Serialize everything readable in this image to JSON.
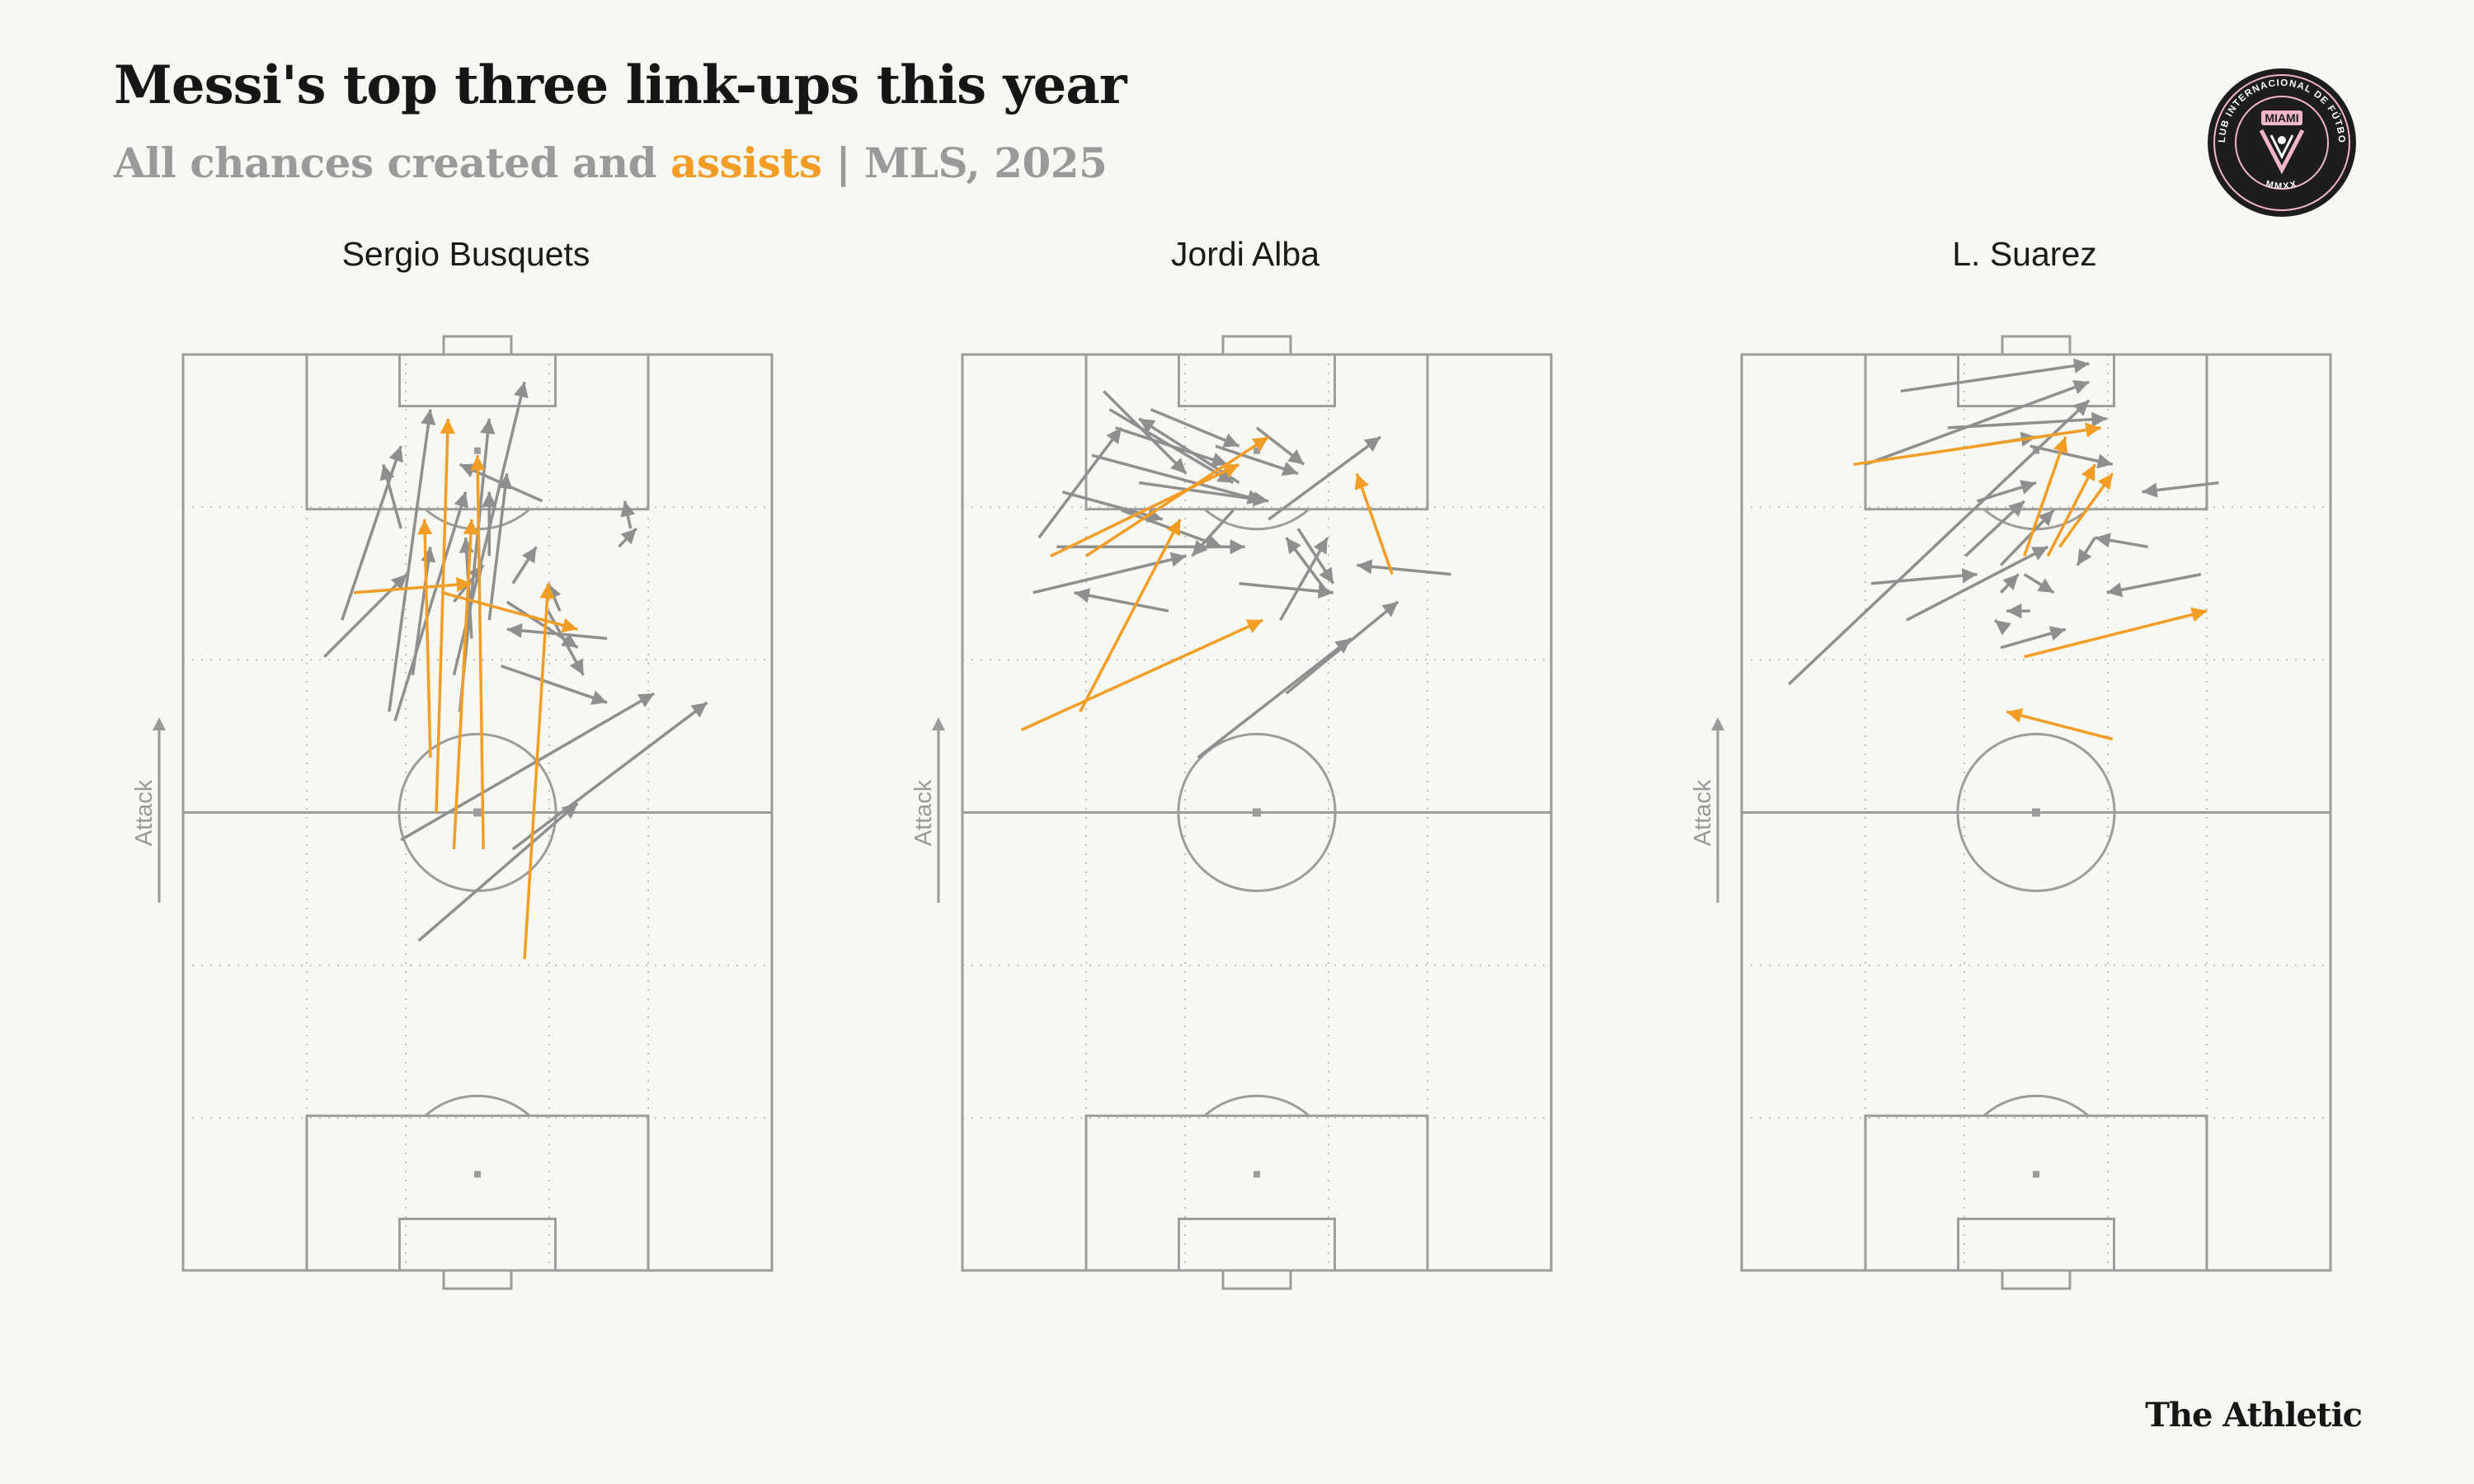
{
  "header": {
    "title": "Messi's top three link-ups this year",
    "subtitle_main": "All chances created and ",
    "subtitle_highlight": "assists",
    "subtitle_tail": " | MLS, 2025"
  },
  "logo": {
    "name": "Inter Miami crest",
    "text_top": "MIAMI",
    "text_ring": "CLUB INTERNACIONAL DE FÚTBOL",
    "text_bottom": "MMXX"
  },
  "brand": "The Athletic",
  "colors": {
    "assist": "#f29d26",
    "chance": "#8f8f8f",
    "pitch_line": "#9c9c9c",
    "background": "#f7f7f3"
  },
  "chart_data": [
    {
      "type": "pass-map",
      "title": "Sergio Busquets",
      "direction_label": "Attack",
      "x_range": [
        0,
        100
      ],
      "y_range": [
        0,
        100
      ],
      "passes": [
        {
          "x1": 43,
          "y1": 50,
          "x2": 45,
          "y2": 93,
          "assist": true
        },
        {
          "x1": 51,
          "y1": 46,
          "x2": 50,
          "y2": 89,
          "assist": true
        },
        {
          "x1": 46,
          "y1": 46,
          "x2": 49,
          "y2": 82,
          "assist": true
        },
        {
          "x1": 42,
          "y1": 56,
          "x2": 41,
          "y2": 82,
          "assist": true
        },
        {
          "x1": 29,
          "y1": 74,
          "x2": 49,
          "y2": 75,
          "assist": true
        },
        {
          "x1": 58,
          "y1": 34,
          "x2": 62,
          "y2": 75,
          "assist": true
        },
        {
          "x1": 44,
          "y1": 74,
          "x2": 67,
          "y2": 70,
          "assist": true
        },
        {
          "x1": 35,
          "y1": 61,
          "x2": 42,
          "y2": 94,
          "assist": false
        },
        {
          "x1": 47,
          "y1": 61,
          "x2": 52,
          "y2": 93,
          "assist": false
        },
        {
          "x1": 46,
          "y1": 65,
          "x2": 58,
          "y2": 97,
          "assist": false
        },
        {
          "x1": 27,
          "y1": 71,
          "x2": 37,
          "y2": 90,
          "assist": false
        },
        {
          "x1": 52,
          "y1": 71,
          "x2": 55,
          "y2": 87,
          "assist": false
        },
        {
          "x1": 37,
          "y1": 81,
          "x2": 34,
          "y2": 88,
          "assist": false
        },
        {
          "x1": 24,
          "y1": 67,
          "x2": 38,
          "y2": 76,
          "assist": false
        },
        {
          "x1": 36,
          "y1": 60,
          "x2": 48,
          "y2": 85,
          "assist": false
        },
        {
          "x1": 55,
          "y1": 73,
          "x2": 67,
          "y2": 68,
          "assist": false
        },
        {
          "x1": 54,
          "y1": 66,
          "x2": 72,
          "y2": 62,
          "assist": false
        },
        {
          "x1": 61,
          "y1": 84,
          "x2": 47,
          "y2": 88,
          "assist": false
        },
        {
          "x1": 39,
          "y1": 65,
          "x2": 42,
          "y2": 79,
          "assist": false
        },
        {
          "x1": 52,
          "y1": 78,
          "x2": 52,
          "y2": 85,
          "assist": false
        },
        {
          "x1": 56,
          "y1": 75,
          "x2": 60,
          "y2": 79,
          "assist": false
        },
        {
          "x1": 49,
          "y1": 69,
          "x2": 48,
          "y2": 80,
          "assist": false
        },
        {
          "x1": 64,
          "y1": 72,
          "x2": 62,
          "y2": 75,
          "assist": false
        },
        {
          "x1": 72,
          "y1": 69,
          "x2": 55,
          "y2": 70,
          "assist": false
        },
        {
          "x1": 62,
          "y1": 72,
          "x2": 68,
          "y2": 65,
          "assist": false
        },
        {
          "x1": 46,
          "y1": 73,
          "x2": 51,
          "y2": 77,
          "assist": false
        },
        {
          "x1": 37,
          "y1": 47,
          "x2": 80,
          "y2": 63,
          "assist": false
        },
        {
          "x1": 56,
          "y1": 46,
          "x2": 89,
          "y2": 62,
          "assist": false
        },
        {
          "x1": 40,
          "y1": 36,
          "x2": 67,
          "y2": 51,
          "assist": false
        },
        {
          "x1": 76,
          "y1": 81,
          "x2": 75,
          "y2": 84,
          "assist": false
        },
        {
          "x1": 74,
          "y1": 79,
          "x2": 77,
          "y2": 81,
          "assist": false
        }
      ]
    },
    {
      "type": "pass-map",
      "title": "Jordi Alba",
      "direction_label": "Attack",
      "x_range": [
        0,
        100
      ],
      "y_range": [
        0,
        100
      ],
      "passes": [
        {
          "x1": 10,
          "y1": 59,
          "x2": 51,
          "y2": 71,
          "assist": true
        },
        {
          "x1": 20,
          "y1": 61,
          "x2": 37,
          "y2": 82,
          "assist": true
        },
        {
          "x1": 15,
          "y1": 78,
          "x2": 47,
          "y2": 88,
          "assist": true
        },
        {
          "x1": 21,
          "y1": 78,
          "x2": 52,
          "y2": 91,
          "assist": true
        },
        {
          "x1": 73,
          "y1": 76,
          "x2": 67,
          "y2": 87,
          "assist": true
        },
        {
          "x1": 12,
          "y1": 74,
          "x2": 38,
          "y2": 78,
          "assist": false
        },
        {
          "x1": 13,
          "y1": 80,
          "x2": 27,
          "y2": 92,
          "assist": false
        },
        {
          "x1": 24,
          "y1": 96,
          "x2": 38,
          "y2": 87,
          "assist": false
        },
        {
          "x1": 25,
          "y1": 94,
          "x2": 46,
          "y2": 86,
          "assist": false
        },
        {
          "x1": 22,
          "y1": 89,
          "x2": 51,
          "y2": 84,
          "assist": false
        },
        {
          "x1": 17,
          "y1": 85,
          "x2": 34,
          "y2": 82,
          "assist": false
        },
        {
          "x1": 16,
          "y1": 79,
          "x2": 48,
          "y2": 79,
          "assist": false
        },
        {
          "x1": 27,
          "y1": 83,
          "x2": 44,
          "y2": 79,
          "assist": false
        },
        {
          "x1": 30,
          "y1": 86,
          "x2": 52,
          "y2": 84,
          "assist": false
        },
        {
          "x1": 43,
          "y1": 90,
          "x2": 57,
          "y2": 87,
          "assist": false
        },
        {
          "x1": 50,
          "y1": 92,
          "x2": 58,
          "y2": 88,
          "assist": false
        },
        {
          "x1": 26,
          "y1": 92,
          "x2": 45,
          "y2": 88,
          "assist": false
        },
        {
          "x1": 32,
          "y1": 94,
          "x2": 47,
          "y2": 90,
          "assist": false
        },
        {
          "x1": 52,
          "y1": 82,
          "x2": 71,
          "y2": 91,
          "assist": false
        },
        {
          "x1": 57,
          "y1": 81,
          "x2": 63,
          "y2": 75,
          "assist": false
        },
        {
          "x1": 62,
          "y1": 74,
          "x2": 55,
          "y2": 80,
          "assist": false
        },
        {
          "x1": 54,
          "y1": 71,
          "x2": 62,
          "y2": 80,
          "assist": false
        },
        {
          "x1": 47,
          "y1": 75,
          "x2": 63,
          "y2": 74,
          "assist": false
        },
        {
          "x1": 83,
          "y1": 76,
          "x2": 67,
          "y2": 77,
          "assist": false
        },
        {
          "x1": 40,
          "y1": 56,
          "x2": 66,
          "y2": 69,
          "assist": false
        },
        {
          "x1": 55,
          "y1": 63,
          "x2": 74,
          "y2": 73,
          "assist": false
        },
        {
          "x1": 35,
          "y1": 72,
          "x2": 19,
          "y2": 74,
          "assist": false
        },
        {
          "x1": 47,
          "y1": 86,
          "x2": 30,
          "y2": 93,
          "assist": false
        },
        {
          "x1": 46,
          "y1": 83,
          "x2": 39,
          "y2": 78,
          "assist": false
        }
      ]
    },
    {
      "type": "pass-map",
      "title": "L. Suarez",
      "direction_label": "Attack",
      "x_range": [
        0,
        100
      ],
      "y_range": [
        0,
        100
      ],
      "passes": [
        {
          "x1": 19,
          "y1": 88,
          "x2": 61,
          "y2": 92,
          "assist": true
        },
        {
          "x1": 52,
          "y1": 78,
          "x2": 60,
          "y2": 88,
          "assist": true
        },
        {
          "x1": 54,
          "y1": 79,
          "x2": 63,
          "y2": 87,
          "assist": true
        },
        {
          "x1": 48,
          "y1": 78,
          "x2": 55,
          "y2": 91,
          "assist": true
        },
        {
          "x1": 48,
          "y1": 67,
          "x2": 79,
          "y2": 72,
          "assist": true
        },
        {
          "x1": 63,
          "y1": 58,
          "x2": 45,
          "y2": 61,
          "assist": true
        },
        {
          "x1": 8,
          "y1": 64,
          "x2": 59,
          "y2": 95,
          "assist": false
        },
        {
          "x1": 21,
          "y1": 88,
          "x2": 59,
          "y2": 97,
          "assist": false
        },
        {
          "x1": 27,
          "y1": 96,
          "x2": 59,
          "y2": 99,
          "assist": false
        },
        {
          "x1": 35,
          "y1": 92,
          "x2": 62,
          "y2": 93,
          "assist": false
        },
        {
          "x1": 40,
          "y1": 90,
          "x2": 50,
          "y2": 91,
          "assist": false
        },
        {
          "x1": 49,
          "y1": 90,
          "x2": 63,
          "y2": 88,
          "assist": false
        },
        {
          "x1": 40,
          "y1": 84,
          "x2": 50,
          "y2": 86,
          "assist": false
        },
        {
          "x1": 22,
          "y1": 75,
          "x2": 40,
          "y2": 76,
          "assist": false
        },
        {
          "x1": 28,
          "y1": 71,
          "x2": 52,
          "y2": 79,
          "assist": false
        },
        {
          "x1": 38,
          "y1": 78,
          "x2": 48,
          "y2": 84,
          "assist": false
        },
        {
          "x1": 44,
          "y1": 77,
          "x2": 53,
          "y2": 83,
          "assist": false
        },
        {
          "x1": 60,
          "y1": 80,
          "x2": 57,
          "y2": 77,
          "assist": false
        },
        {
          "x1": 44,
          "y1": 74,
          "x2": 47,
          "y2": 76,
          "assist": false
        },
        {
          "x1": 48,
          "y1": 76,
          "x2": 53,
          "y2": 74,
          "assist": false
        },
        {
          "x1": 45,
          "y1": 70,
          "x2": 43,
          "y2": 71,
          "assist": false
        },
        {
          "x1": 49,
          "y1": 72,
          "x2": 45,
          "y2": 72,
          "assist": false
        },
        {
          "x1": 44,
          "y1": 68,
          "x2": 55,
          "y2": 70,
          "assist": false
        },
        {
          "x1": 69,
          "y1": 79,
          "x2": 60,
          "y2": 80,
          "assist": false
        },
        {
          "x1": 78,
          "y1": 76,
          "x2": 62,
          "y2": 74,
          "assist": false
        },
        {
          "x1": 81,
          "y1": 86,
          "x2": 68,
          "y2": 85,
          "assist": false
        }
      ]
    }
  ]
}
